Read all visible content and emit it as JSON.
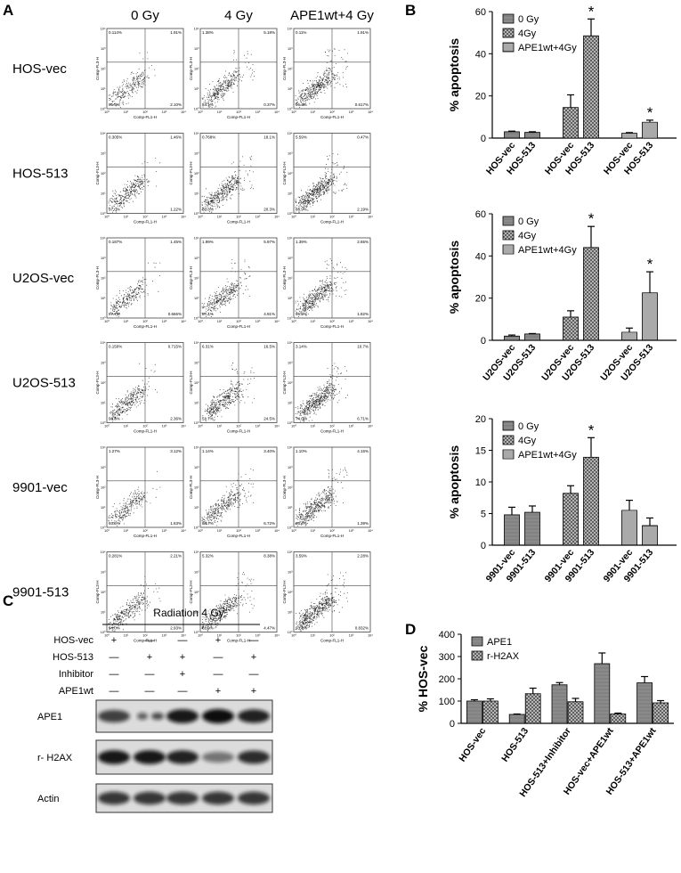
{
  "panel_a": {
    "label": "A",
    "columns": [
      "0 Gy",
      "4 Gy",
      "APE1wt+4 Gy"
    ],
    "x_axis_label": "Comp-FL1-H",
    "y_axis_label": "Comp-FL3-H",
    "decades": [
      "10⁰",
      "10¹",
      "10²",
      "10³",
      "10⁴"
    ],
    "rows": [
      {
        "label": "HOS-vec",
        "plots": [
          [
            "0.114%",
            "1.91%",
            "95.9%",
            "2.10%"
          ],
          [
            "1.38%",
            "5.18%",
            "84.1%",
            "0.37%"
          ],
          [
            "0.11%",
            "1.91%",
            "96.4%",
            "0.617%"
          ]
        ]
      },
      {
        "label": "HOS-513",
        "plots": [
          [
            "0.305%",
            "1.46%",
            "97.0%",
            "1.22%"
          ],
          [
            "0.768%",
            "18.1%",
            "80.8%",
            "20.3%"
          ],
          [
            "5.59%",
            "0.47%",
            "86.9%",
            "2.19%"
          ]
        ]
      },
      {
        "label": "U2OS-vec",
        "plots": [
          [
            "0.187%",
            "1.45%",
            "97.7%",
            "0.666%"
          ],
          [
            "1.99%",
            "5.97%",
            "87.1%",
            "4.91%"
          ],
          [
            "1.39%",
            "2.65%",
            "95.0%",
            "1.82%"
          ]
        ]
      },
      {
        "label": "U2OS-513",
        "plots": [
          [
            "0.150%",
            "0.715%",
            "96.8%",
            "2.36%"
          ],
          [
            "6.31%",
            "16.5%",
            "51.7%",
            "24.5%"
          ],
          [
            "3.14%",
            "10.7%",
            "74.0%",
            "6.71%"
          ]
        ]
      },
      {
        "label": "9901-vec",
        "plots": [
          [
            "1.27%",
            "3.12%",
            "93.5%",
            "1.63%"
          ],
          [
            "1.14%",
            "3.40%",
            "88.7%",
            "6.72%"
          ],
          [
            "1.10%",
            "4.15%",
            "93.4%",
            "1.39%"
          ]
        ]
      },
      {
        "label": "9901-513",
        "plots": [
          [
            "0.281%",
            "2.21%",
            "94.0%",
            "2.93%"
          ],
          [
            "5.32%",
            "8.38%",
            "82.9%",
            "4.47%"
          ],
          [
            "3.59%",
            "2.28%",
            "93.3%",
            "0.832%"
          ]
        ]
      }
    ]
  },
  "panel_b": {
    "label": "B"
  },
  "panel_c": {
    "label": "C",
    "title": "Radiation 4 Gy",
    "conditions": [
      {
        "label": "HOS-vec",
        "marks": [
          "+",
          "—",
          "—",
          "+",
          "—"
        ]
      },
      {
        "label": "HOS-513",
        "marks": [
          "—",
          "+",
          "+",
          "—",
          "+"
        ]
      },
      {
        "label": "Inhibitor",
        "marks": [
          "—",
          "—",
          "+",
          "—",
          "—"
        ]
      },
      {
        "label": "APE1wt",
        "marks": [
          "—",
          "—",
          "—",
          "+",
          "+"
        ]
      }
    ],
    "blots": [
      "APE1",
      "r- H2AX",
      "Actin"
    ]
  },
  "panel_d": {
    "label": "D"
  },
  "chart_data": [
    {
      "type": "bar",
      "y_label": "% apoptosis",
      "categories": [
        "HOS-vec",
        "HOS-513",
        "HOS-vec",
        "HOS-513",
        "HOS-vec",
        "HOS-513"
      ],
      "series": [
        {
          "name": "0 Gy",
          "color": "#8a8a8a",
          "pattern": "solid",
          "values": [
            3,
            2.7,
            null,
            null,
            null,
            null
          ],
          "errors": [
            0.3,
            0.3,
            null,
            null,
            null,
            null
          ]
        },
        {
          "name": "4Gy",
          "color": "#555555",
          "pattern": "crosshatch",
          "values": [
            null,
            null,
            14.5,
            48.5,
            null,
            null
          ],
          "errors": [
            null,
            null,
            6,
            8,
            null,
            null
          ]
        },
        {
          "name": "APE1wt+4Gy",
          "color": "#555555",
          "pattern": "hstripes",
          "values": [
            null,
            null,
            null,
            null,
            2.3,
            7.5
          ],
          "errors": [
            null,
            null,
            null,
            null,
            0.3,
            1
          ]
        }
      ],
      "significance": [
        null,
        null,
        null,
        "*",
        null,
        "*"
      ],
      "ylim": [
        0,
        60
      ],
      "yticks": [
        0,
        20,
        40,
        60
      ],
      "legend": "upper-left"
    },
    {
      "type": "bar",
      "y_label": "% apoptosis",
      "categories": [
        "U2OS-vec",
        "U2OS-513",
        "U2OS-vec",
        "U2OS-513",
        "U2OS-vec",
        "U2OS-513"
      ],
      "series": [
        {
          "name": "0 Gy",
          "color": "#8a8a8a",
          "pattern": "solid",
          "values": [
            2,
            3,
            null,
            null,
            null,
            null
          ],
          "errors": [
            0.5,
            0.2,
            null,
            null,
            null,
            null
          ]
        },
        {
          "name": "4Gy",
          "color": "#555555",
          "pattern": "crosshatch",
          "values": [
            null,
            null,
            11,
            44,
            null,
            null
          ],
          "errors": [
            null,
            null,
            3,
            10,
            null,
            null
          ]
        },
        {
          "name": "APE1wt+4Gy",
          "color": "#555555",
          "pattern": "hstripes",
          "values": [
            null,
            null,
            null,
            null,
            3.8,
            22.5
          ],
          "errors": [
            null,
            null,
            null,
            null,
            2,
            10
          ]
        }
      ],
      "significance": [
        null,
        null,
        null,
        "*",
        null,
        "*"
      ],
      "ylim": [
        0,
        60
      ],
      "yticks": [
        0,
        20,
        40,
        60
      ],
      "legend": "upper-left"
    },
    {
      "type": "bar",
      "y_label": "% apoptosis",
      "categories": [
        "9901-vec",
        "9901-513",
        "9901-vec",
        "9901-513",
        "9901-vec",
        "9901-513"
      ],
      "series": [
        {
          "name": "0 Gy",
          "color": "#8a8a8a",
          "pattern": "solid",
          "values": [
            4.8,
            5.2,
            null,
            null,
            null,
            null
          ],
          "errors": [
            1.2,
            1,
            null,
            null,
            null,
            null
          ]
        },
        {
          "name": "4Gy",
          "color": "#555555",
          "pattern": "crosshatch",
          "values": [
            null,
            null,
            8.2,
            13.9,
            null,
            null
          ],
          "errors": [
            null,
            null,
            1.2,
            3.1,
            null,
            null
          ]
        },
        {
          "name": "APE1wt+4Gy",
          "color": "#555555",
          "pattern": "hstripes",
          "values": [
            null,
            null,
            null,
            null,
            5.5,
            3.1
          ],
          "errors": [
            null,
            null,
            null,
            null,
            1.6,
            1.2
          ]
        }
      ],
      "significance": [
        null,
        null,
        null,
        "*",
        null,
        null
      ],
      "ylim": [
        0,
        20
      ],
      "yticks": [
        0,
        5,
        10,
        15,
        20
      ],
      "legend": "upper-left"
    },
    {
      "type": "bar",
      "y_label": "% HOS-vec",
      "categories": [
        "HOS-vec",
        "HOS-513",
        "HOS-513+Inhibitor",
        "HOS-vec+APE1wt",
        "HOS-513+APE1wt"
      ],
      "series": [
        {
          "name": "APE1",
          "color": "#8a8a8a",
          "pattern": "solid",
          "values": [
            100,
            40,
            173,
            268,
            182
          ],
          "errors": [
            6,
            2,
            10,
            48,
            28
          ]
        },
        {
          "name": "r-H2AX",
          "color": "#555555",
          "pattern": "crosshatch",
          "values": [
            100,
            133,
            97,
            42,
            92
          ],
          "errors": [
            10,
            25,
            15,
            4,
            10
          ]
        }
      ],
      "ylim": [
        0,
        400
      ],
      "yticks": [
        0,
        100,
        200,
        300,
        400
      ],
      "legend": "upper-left"
    }
  ]
}
